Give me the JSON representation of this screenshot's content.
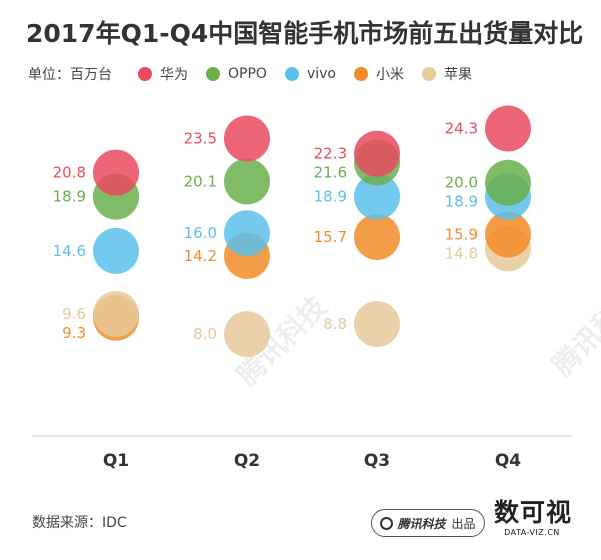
{
  "title": "2017年Q1-Q4中国智能手机市场前五出货量对比",
  "legend": {
    "unit": "单位：百万台",
    "items": [
      {
        "label": "华为",
        "color": "#e84a5f"
      },
      {
        "label": "OPPO",
        "color": "#6ab04c"
      },
      {
        "label": "vivo",
        "color": "#5bc0eb"
      },
      {
        "label": "小米",
        "color": "#f28c28"
      },
      {
        "label": "苹果",
        "color": "#e8c99b"
      }
    ]
  },
  "chart_data": {
    "type": "scatter",
    "categories": [
      "Q1",
      "Q2",
      "Q3",
      "Q4"
    ],
    "series": [
      {
        "name": "华为",
        "color": "#e84a5f",
        "values": [
          20.8,
          23.5,
          22.3,
          24.3
        ]
      },
      {
        "name": "OPPO",
        "color": "#6ab04c",
        "values": [
          18.9,
          20.1,
          21.6,
          20.0
        ]
      },
      {
        "name": "vivo",
        "color": "#5bc0eb",
        "values": [
          14.6,
          16.0,
          18.9,
          18.9
        ]
      },
      {
        "name": "小米",
        "color": "#f28c28",
        "values": [
          9.3,
          14.2,
          15.7,
          15.9
        ]
      },
      {
        "name": "苹果",
        "color": "#e8c99b",
        "values": [
          9.6,
          8.0,
          8.8,
          14.8
        ]
      }
    ],
    "ylim": [
      5,
      26
    ],
    "grid": false,
    "legend_position": "top"
  },
  "footer": {
    "source": "数据来源：IDC",
    "publisher": "腾讯科技",
    "publisher_suffix": "出品",
    "brand": "数可视",
    "brand_url": "DATA-VIZ.CN"
  },
  "watermark": "腾讯科技"
}
